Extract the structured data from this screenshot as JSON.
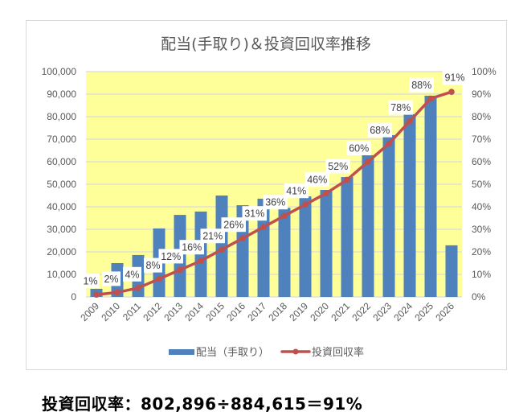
{
  "chart_data": {
    "type": "bar+line",
    "title": "配当(手取り)＆投資回収率推移",
    "categories": [
      "2009",
      "2010",
      "2011",
      "2012",
      "2013",
      "2014",
      "2015",
      "2016",
      "2017",
      "2018",
      "2019",
      "2020",
      "2021",
      "2022",
      "2023",
      "2024",
      "2025",
      "2026"
    ],
    "series": [
      {
        "name": "配当（手取り）",
        "type": "bar",
        "axis": "left",
        "color": "#4F81BD",
        "values": [
          3600,
          15000,
          18600,
          30400,
          36400,
          37900,
          45000,
          40700,
          43600,
          39500,
          44600,
          47500,
          53200,
          62900,
          71800,
          81100,
          89300,
          22900
        ]
      },
      {
        "name": "投資回収率",
        "type": "line",
        "axis": "right",
        "color": "#C0504D",
        "values": [
          1,
          2,
          4,
          8,
          12,
          16,
          21,
          26,
          31,
          36,
          41,
          46,
          52,
          60,
          68,
          78,
          88,
          91
        ],
        "labels": [
          "1%",
          "2%",
          "4%",
          "8%",
          "12%",
          "16%",
          "21%",
          "26%",
          "31%",
          "36%",
          "41%",
          "46%",
          "52%",
          "60%",
          "68%",
          "78%",
          "88%",
          "91%"
        ]
      }
    ],
    "left_axis": {
      "ylim": [
        0,
        100000
      ],
      "ticks": [
        "0",
        "10,000",
        "20,000",
        "30,000",
        "40,000",
        "50,000",
        "60,000",
        "70,000",
        "80,000",
        "90,000",
        "100,000"
      ]
    },
    "right_axis": {
      "ylim": [
        0,
        100
      ],
      "ticks": [
        "0%",
        "10%",
        "20%",
        "30%",
        "40%",
        "50%",
        "60%",
        "70%",
        "80%",
        "90%",
        "100%"
      ]
    },
    "xlabel": "",
    "ylabel": "",
    "grid": true,
    "plot_background": "#FFFF99",
    "legend": {
      "position": "bottom",
      "entries": [
        "配当（手取り）",
        "投資回収率"
      ]
    }
  },
  "summary": {
    "text": "投資回収率：802,896÷884,615＝91%"
  }
}
